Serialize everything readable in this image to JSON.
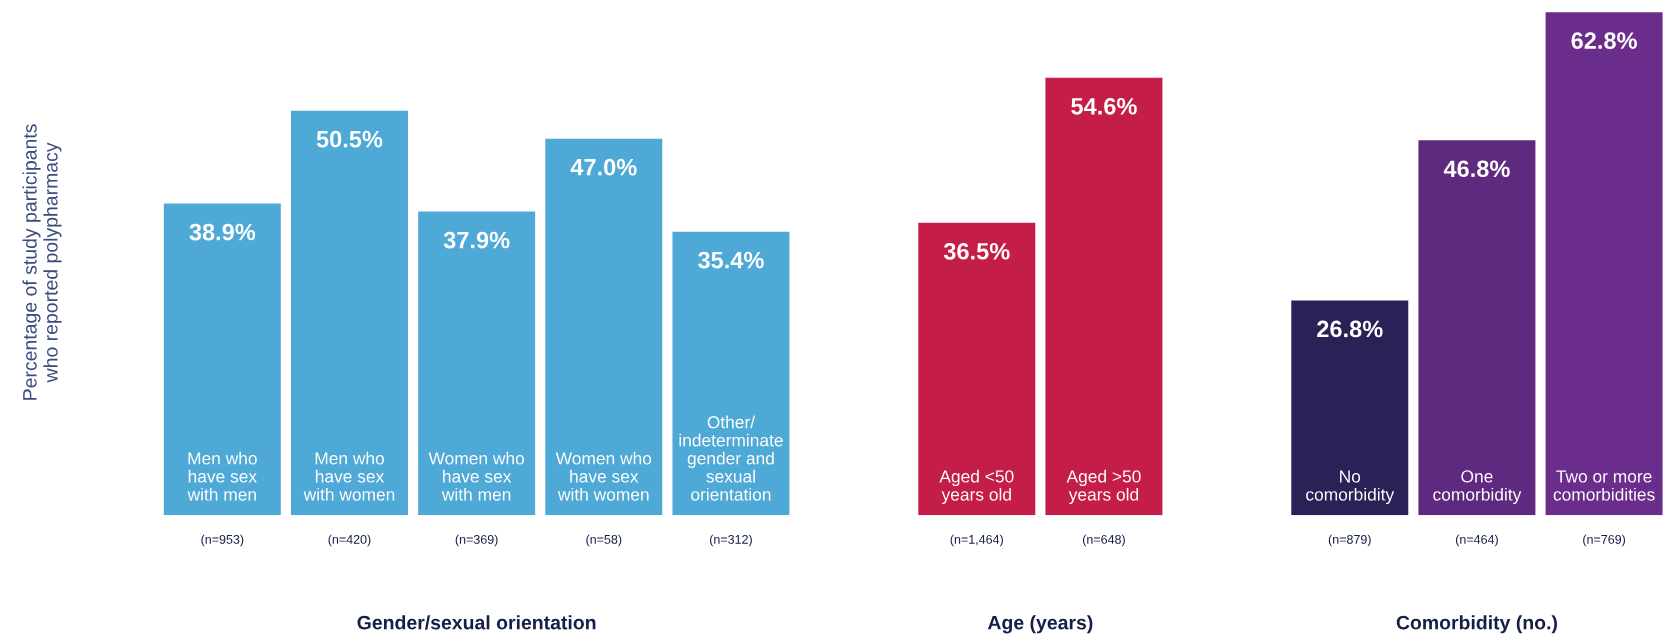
{
  "chart_data": [
    {
      "type": "bar",
      "xlabel": "Gender/sexual orientation",
      "ylabel": "Percentage of study participants\nwho reported polypharmacy",
      "categories": [
        "Men who\nhave sex\nwith men",
        "Men who\nhave sex\nwith women",
        "Women who\nhave sex\nwith men",
        "Women who\nhave sex\nwith women",
        "Other/\nindeterminate\ngender and\nsexual\norientation"
      ],
      "values": [
        38.9,
        50.5,
        37.9,
        47.0,
        35.4
      ],
      "value_labels": [
        "38.9%",
        "50.5%",
        "37.9%",
        "47.0%",
        "35.4%"
      ],
      "colors": [
        "#4fa9d6",
        "#4fa9d6",
        "#4fa9d6",
        "#4fa9d6",
        "#4fa9d6"
      ],
      "annotations": [
        "(n=953)",
        "(n=420)",
        "(n=369)",
        "(n=58)",
        "(n=312)"
      ]
    },
    {
      "type": "bar",
      "xlabel": "Age (years)",
      "categories": [
        "Aged <50\nyears old",
        "Aged >50\nyears old"
      ],
      "values": [
        36.5,
        54.6
      ],
      "value_labels": [
        "36.5%",
        "54.6%"
      ],
      "colors": [
        "#c41e48",
        "#c41e48"
      ],
      "annotations": [
        "(n=1,464)",
        "(n=648)"
      ]
    },
    {
      "type": "bar",
      "xlabel": "Comorbidity (no.)",
      "categories": [
        "No\ncomorbidity",
        "One\ncomorbidity",
        "Two or more\ncomorbidities"
      ],
      "values": [
        26.8,
        46.8,
        62.8
      ],
      "value_labels": [
        "26.8%",
        "46.8%",
        "62.8%"
      ],
      "colors": [
        "#2b2156",
        "#5e2a80",
        "#6b2d8b"
      ],
      "annotations": [
        "(n=879)",
        "(n=464)",
        "(n=769)"
      ]
    }
  ]
}
